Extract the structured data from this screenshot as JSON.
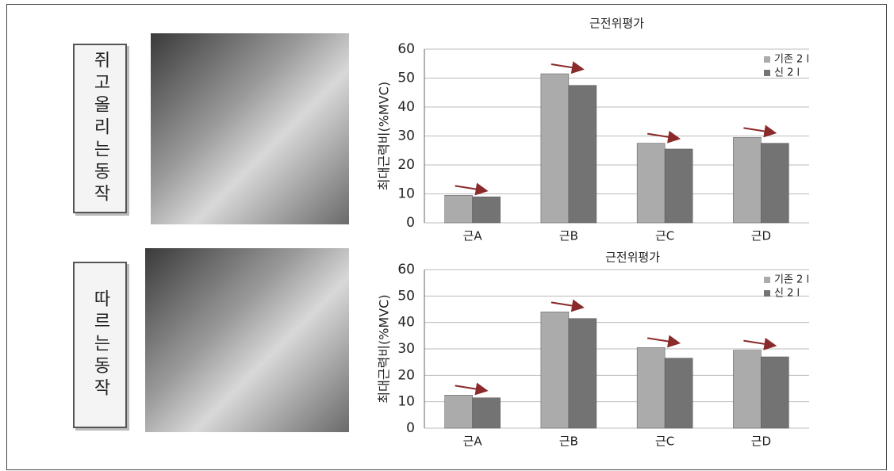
{
  "panels": [
    {
      "label": "쥐고올리는동작"
    },
    {
      "label": "따르는동작"
    }
  ],
  "chart_data": [
    {
      "type": "bar",
      "title": "근전위평가",
      "ylabel": "최대근력비(%MVC)",
      "categories": [
        "근A",
        "근B",
        "근C",
        "근D"
      ],
      "series": [
        {
          "name": "기존 2 l",
          "color": "#ababab",
          "values": [
            9.5,
            51.5,
            27.5,
            29.5
          ]
        },
        {
          "name": "신 2 l",
          "color": "#737373",
          "values": [
            9,
            47.5,
            25.5,
            27.5
          ]
        }
      ],
      "ylim": [
        0,
        60
      ],
      "yticks": [
        0,
        10,
        20,
        30,
        40,
        50,
        60
      ],
      "grid": true,
      "legend": "upper right"
    },
    {
      "type": "bar",
      "title": "근전위평가",
      "ylabel": "최대근력비(%MVC)",
      "categories": [
        "근A",
        "근B",
        "근C",
        "근D"
      ],
      "series": [
        {
          "name": "기존 2 l",
          "color": "#ababab",
          "values": [
            12.5,
            44,
            30.5,
            29.5
          ]
        },
        {
          "name": "신 2 l",
          "color": "#737373",
          "values": [
            11.5,
            41.5,
            26.5,
            27
          ]
        }
      ],
      "ylim": [
        0,
        60
      ],
      "yticks": [
        0,
        10,
        20,
        30,
        40,
        50,
        60
      ],
      "grid": true,
      "legend": "upper right"
    }
  ]
}
